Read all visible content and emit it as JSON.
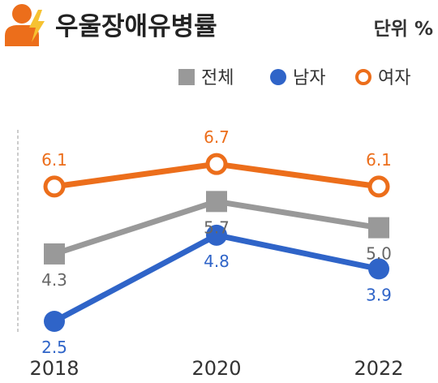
{
  "chart_data": {
    "type": "line",
    "title": "우울장애유병률",
    "unit_label": "단위 %",
    "x": [
      "2018",
      "2020",
      "2022"
    ],
    "series": [
      {
        "name": "전체",
        "values": [
          4.3,
          5.7,
          5.0
        ],
        "color": "#999999",
        "marker": "square"
      },
      {
        "name": "남자",
        "values": [
          2.5,
          4.8,
          3.9
        ],
        "color": "#2f64c8",
        "marker": "filled-circle"
      },
      {
        "name": "여자",
        "values": [
          6.1,
          6.7,
          6.1
        ],
        "color": "#ec6e1b",
        "marker": "hollow-circle"
      }
    ],
    "grid": false,
    "legend_position": "top-right",
    "icon": "stressed-person-lightning-icon"
  }
}
